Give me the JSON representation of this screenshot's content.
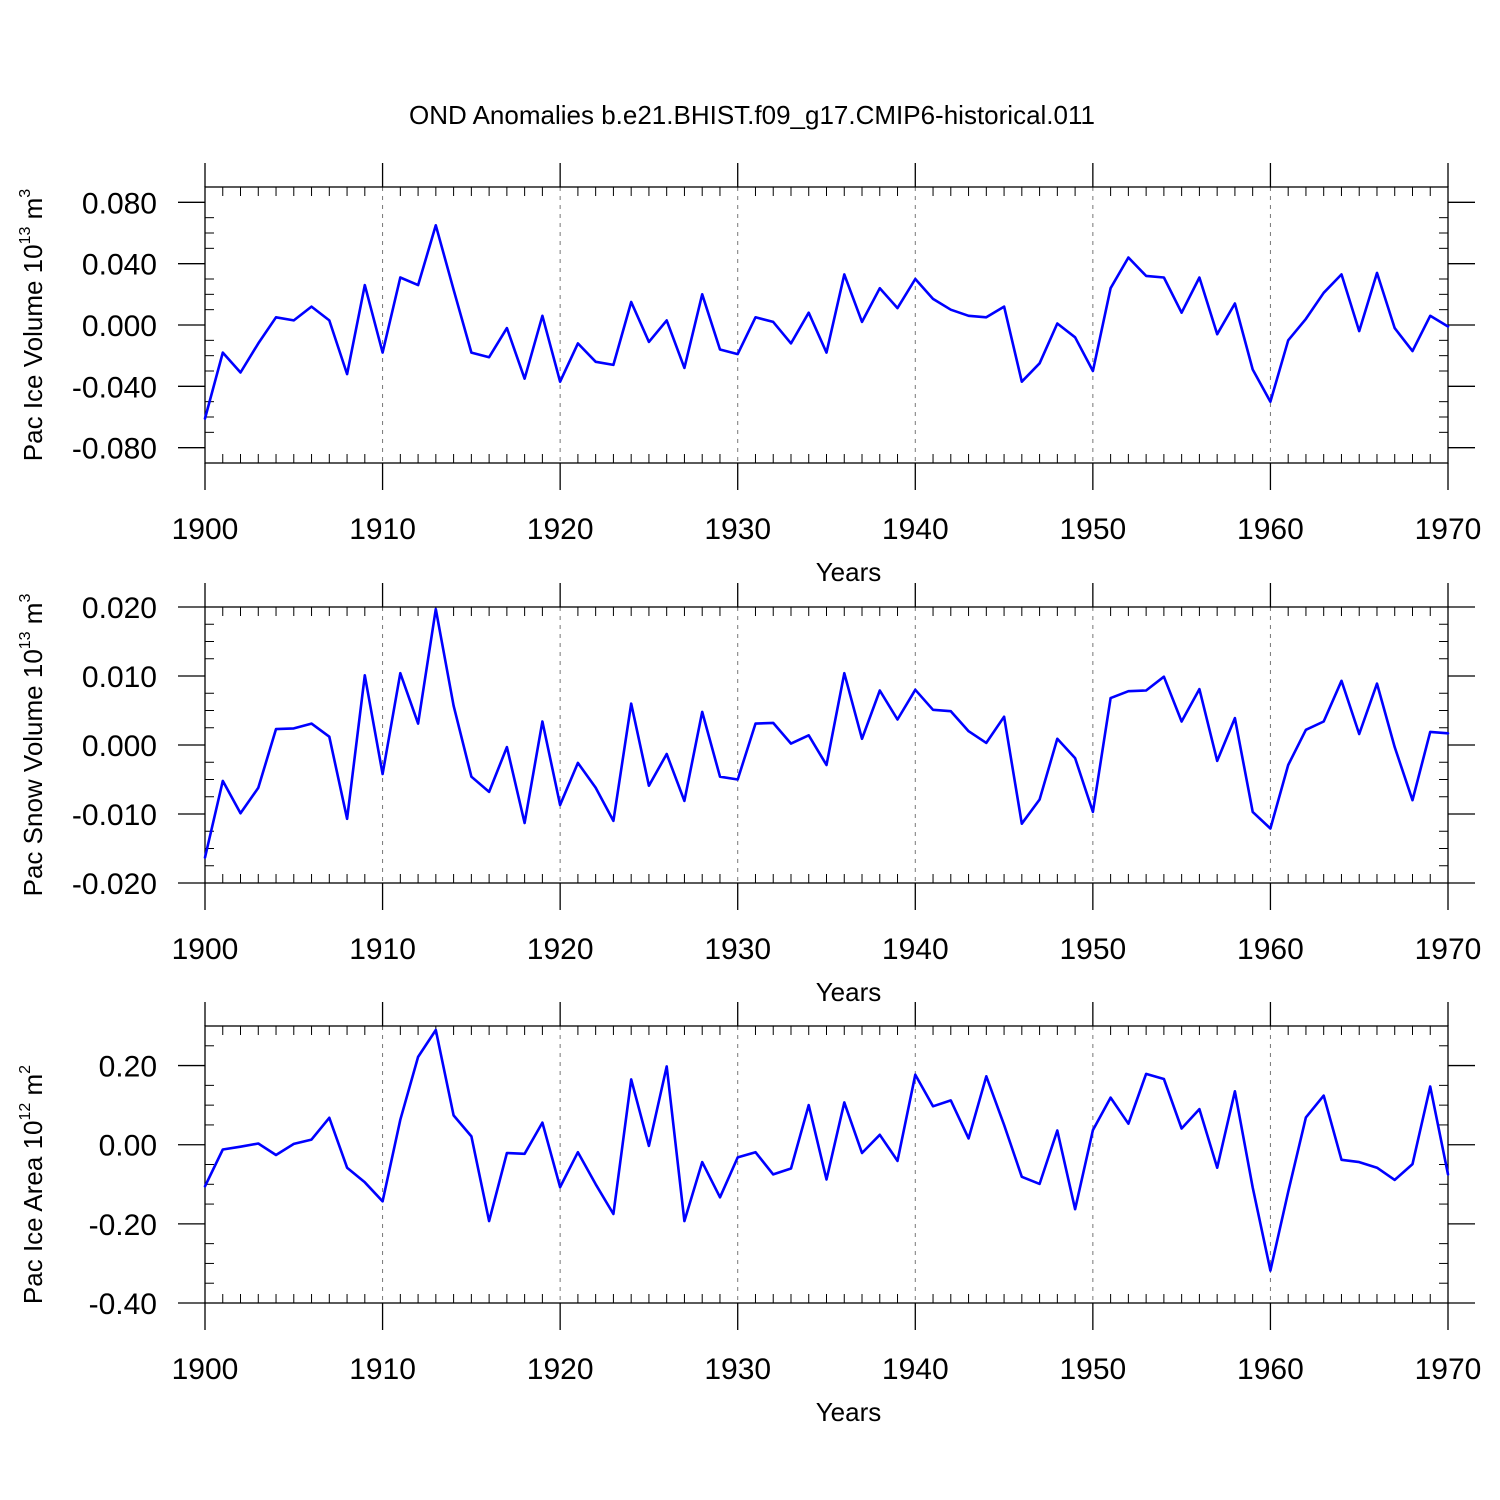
{
  "title": "OND Anomalies b.e21.BHIST.f09_g17.CMIP6-historical.011",
  "line_color": "#0000ff",
  "chart_data": [
    {
      "type": "line",
      "title": "OND Anomalies b.e21.BHIST.f09_g17.CMIP6-historical.011",
      "xlabel": "Years",
      "ylabel": {
        "prefix": "Pac Ice Volume 10",
        "sup1": "13",
        "mid": " m",
        "sup2": "3"
      },
      "xlim": [
        1900,
        1970
      ],
      "ylim": [
        -0.09,
        0.09
      ],
      "xticks": [
        1900,
        1910,
        1920,
        1930,
        1940,
        1950,
        1960,
        1970
      ],
      "yticks": [
        -0.08,
        -0.04,
        0.0,
        0.04,
        0.08
      ],
      "ytick_labels": [
        "-0.080",
        "-0.040",
        "0.000",
        "0.040",
        "0.080"
      ],
      "y_minor_step": 0.01,
      "x": [
        1900,
        1901,
        1902,
        1903,
        1904,
        1905,
        1906,
        1907,
        1908,
        1909,
        1910,
        1911,
        1912,
        1913,
        1914,
        1915,
        1916,
        1917,
        1918,
        1919,
        1920,
        1921,
        1922,
        1923,
        1924,
        1925,
        1926,
        1927,
        1928,
        1929,
        1930,
        1931,
        1932,
        1933,
        1934,
        1935,
        1936,
        1937,
        1938,
        1939,
        1940,
        1941,
        1942,
        1943,
        1944,
        1945,
        1946,
        1947,
        1948,
        1949,
        1950,
        1951,
        1952,
        1953,
        1954,
        1955,
        1956,
        1957,
        1958,
        1959,
        1960,
        1961,
        1962,
        1963,
        1964,
        1965,
        1966,
        1967,
        1968,
        1969,
        1970
      ],
      "values": [
        -0.061,
        -0.018,
        -0.031,
        -0.012,
        0.005,
        0.003,
        0.012,
        0.003,
        -0.032,
        0.026,
        -0.018,
        0.031,
        0.026,
        0.065,
        0.023,
        -0.018,
        -0.021,
        -0.002,
        -0.035,
        0.006,
        -0.037,
        -0.012,
        -0.024,
        -0.026,
        0.015,
        -0.011,
        0.003,
        -0.028,
        0.02,
        -0.016,
        -0.019,
        0.005,
        0.002,
        -0.012,
        0.008,
        -0.018,
        0.033,
        0.002,
        0.024,
        0.011,
        0.03,
        0.017,
        0.01,
        0.006,
        0.005,
        0.012,
        -0.037,
        -0.025,
        0.001,
        -0.008,
        -0.03,
        0.024,
        0.044,
        0.032,
        0.031,
        0.008,
        0.031,
        -0.006,
        0.014,
        -0.029,
        -0.05,
        -0.01,
        0.004,
        0.021,
        0.033,
        -0.004,
        0.034,
        -0.002,
        -0.017,
        0.006,
        -0.001
      ]
    },
    {
      "type": "line",
      "xlabel": "Years",
      "ylabel": {
        "prefix": "Pac Snow Volume 10",
        "sup1": "13",
        "mid": " m",
        "sup2": "3"
      },
      "xlim": [
        1900,
        1970
      ],
      "ylim": [
        -0.02,
        0.02
      ],
      "xticks": [
        1900,
        1910,
        1920,
        1930,
        1940,
        1950,
        1960,
        1970
      ],
      "yticks": [
        -0.02,
        -0.01,
        0.0,
        0.01,
        0.02
      ],
      "ytick_labels": [
        "-0.020",
        "-0.010",
        "0.000",
        "0.010",
        "0.020"
      ],
      "y_minor_step": 0.0025,
      "x": [
        1900,
        1901,
        1902,
        1903,
        1904,
        1905,
        1906,
        1907,
        1908,
        1909,
        1910,
        1911,
        1912,
        1913,
        1914,
        1915,
        1916,
        1917,
        1918,
        1919,
        1920,
        1921,
        1922,
        1923,
        1924,
        1925,
        1926,
        1927,
        1928,
        1929,
        1930,
        1931,
        1932,
        1933,
        1934,
        1935,
        1936,
        1937,
        1938,
        1939,
        1940,
        1941,
        1942,
        1943,
        1944,
        1945,
        1946,
        1947,
        1948,
        1949,
        1950,
        1951,
        1952,
        1953,
        1954,
        1955,
        1956,
        1957,
        1958,
        1959,
        1960,
        1961,
        1962,
        1963,
        1964,
        1965,
        1966,
        1967,
        1968,
        1969,
        1970
      ],
      "values": [
        -0.0163,
        -0.0052,
        -0.0099,
        -0.0062,
        0.0023,
        0.0024,
        0.0031,
        0.0012,
        -0.0107,
        0.0101,
        -0.0042,
        0.0104,
        0.0031,
        0.0197,
        0.0057,
        -0.0046,
        -0.0068,
        -0.0003,
        -0.0113,
        0.0034,
        -0.0087,
        -0.0026,
        -0.0062,
        -0.011,
        0.006,
        -0.0059,
        -0.0013,
        -0.0081,
        0.0048,
        -0.0046,
        -0.005,
        0.0031,
        0.0032,
        0.0002,
        0.0014,
        -0.0029,
        0.0104,
        0.0009,
        0.0079,
        0.0037,
        0.008,
        0.0051,
        0.0049,
        0.002,
        0.0003,
        0.0041,
        -0.0114,
        -0.0079,
        0.0009,
        -0.0019,
        -0.0097,
        0.0068,
        0.0078,
        0.0079,
        0.0099,
        0.0034,
        0.0081,
        -0.0023,
        0.0039,
        -0.0097,
        -0.0121,
        -0.0029,
        0.0022,
        0.0034,
        0.0093,
        0.0016,
        0.0089,
        -0.0003,
        -0.008,
        0.0019,
        0.0017
      ]
    },
    {
      "type": "line",
      "xlabel": "Years",
      "ylabel": {
        "prefix": "Pac Ice Area 10",
        "sup1": "12",
        "mid": " m",
        "sup2": "2"
      },
      "xlim": [
        1900,
        1970
      ],
      "ylim": [
        -0.4,
        0.3
      ],
      "xticks": [
        1900,
        1910,
        1920,
        1930,
        1940,
        1950,
        1960,
        1970
      ],
      "yticks": [
        -0.4,
        -0.2,
        0.0,
        0.2
      ],
      "ytick_labels": [
        "-0.40",
        "-0.20",
        "0.00",
        "0.20"
      ],
      "y_minor_step": 0.05,
      "x": [
        1900,
        1901,
        1902,
        1903,
        1904,
        1905,
        1906,
        1907,
        1908,
        1909,
        1910,
        1911,
        1912,
        1913,
        1914,
        1915,
        1916,
        1917,
        1918,
        1919,
        1920,
        1921,
        1922,
        1923,
        1924,
        1925,
        1926,
        1927,
        1928,
        1929,
        1930,
        1931,
        1932,
        1933,
        1934,
        1935,
        1936,
        1937,
        1938,
        1939,
        1940,
        1941,
        1942,
        1943,
        1944,
        1945,
        1946,
        1947,
        1948,
        1949,
        1950,
        1951,
        1952,
        1953,
        1954,
        1955,
        1956,
        1957,
        1958,
        1959,
        1960,
        1961,
        1962,
        1963,
        1964,
        1965,
        1966,
        1967,
        1968,
        1969,
        1970
      ],
      "values": [
        -0.105,
        -0.012,
        -0.005,
        0.003,
        -0.026,
        0.002,
        0.013,
        0.068,
        -0.058,
        -0.095,
        -0.143,
        0.063,
        0.222,
        0.29,
        0.074,
        0.021,
        -0.193,
        -0.021,
        -0.023,
        0.056,
        -0.107,
        -0.019,
        -0.1,
        -0.175,
        0.165,
        -0.003,
        0.198,
        -0.193,
        -0.044,
        -0.133,
        -0.032,
        -0.019,
        -0.075,
        -0.06,
        0.1,
        -0.088,
        0.107,
        -0.021,
        0.025,
        -0.041,
        0.177,
        0.097,
        0.112,
        0.016,
        0.173,
        0.05,
        -0.081,
        -0.099,
        0.036,
        -0.163,
        0.037,
        0.119,
        0.053,
        0.179,
        0.166,
        0.041,
        0.09,
        -0.058,
        0.135,
        -0.108,
        -0.318,
        -0.119,
        0.069,
        0.124,
        -0.038,
        -0.044,
        -0.058,
        -0.089,
        -0.049,
        0.147,
        -0.075
      ]
    }
  ]
}
